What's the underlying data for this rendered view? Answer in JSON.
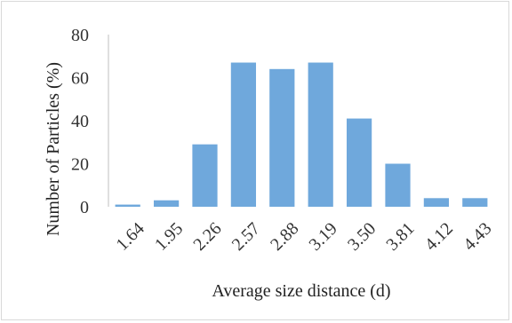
{
  "chart_data": {
    "type": "bar",
    "title": "",
    "xlabel": "Average  size distance (d)",
    "ylabel": "Number of Particles (%)",
    "categories": [
      "1.64",
      "1.95",
      "2.26",
      "2.57",
      "2.88",
      "3.19",
      "3.50",
      "3.81",
      "4.12",
      "4.43"
    ],
    "values": [
      1,
      3,
      29,
      67,
      64,
      67,
      41,
      20,
      4,
      4
    ],
    "ylim": [
      0,
      80
    ],
    "yticks": [
      "0",
      "20",
      "40",
      "60",
      "80"
    ],
    "grid": false,
    "legend": "none",
    "bar_color": "#6fa8dc"
  }
}
